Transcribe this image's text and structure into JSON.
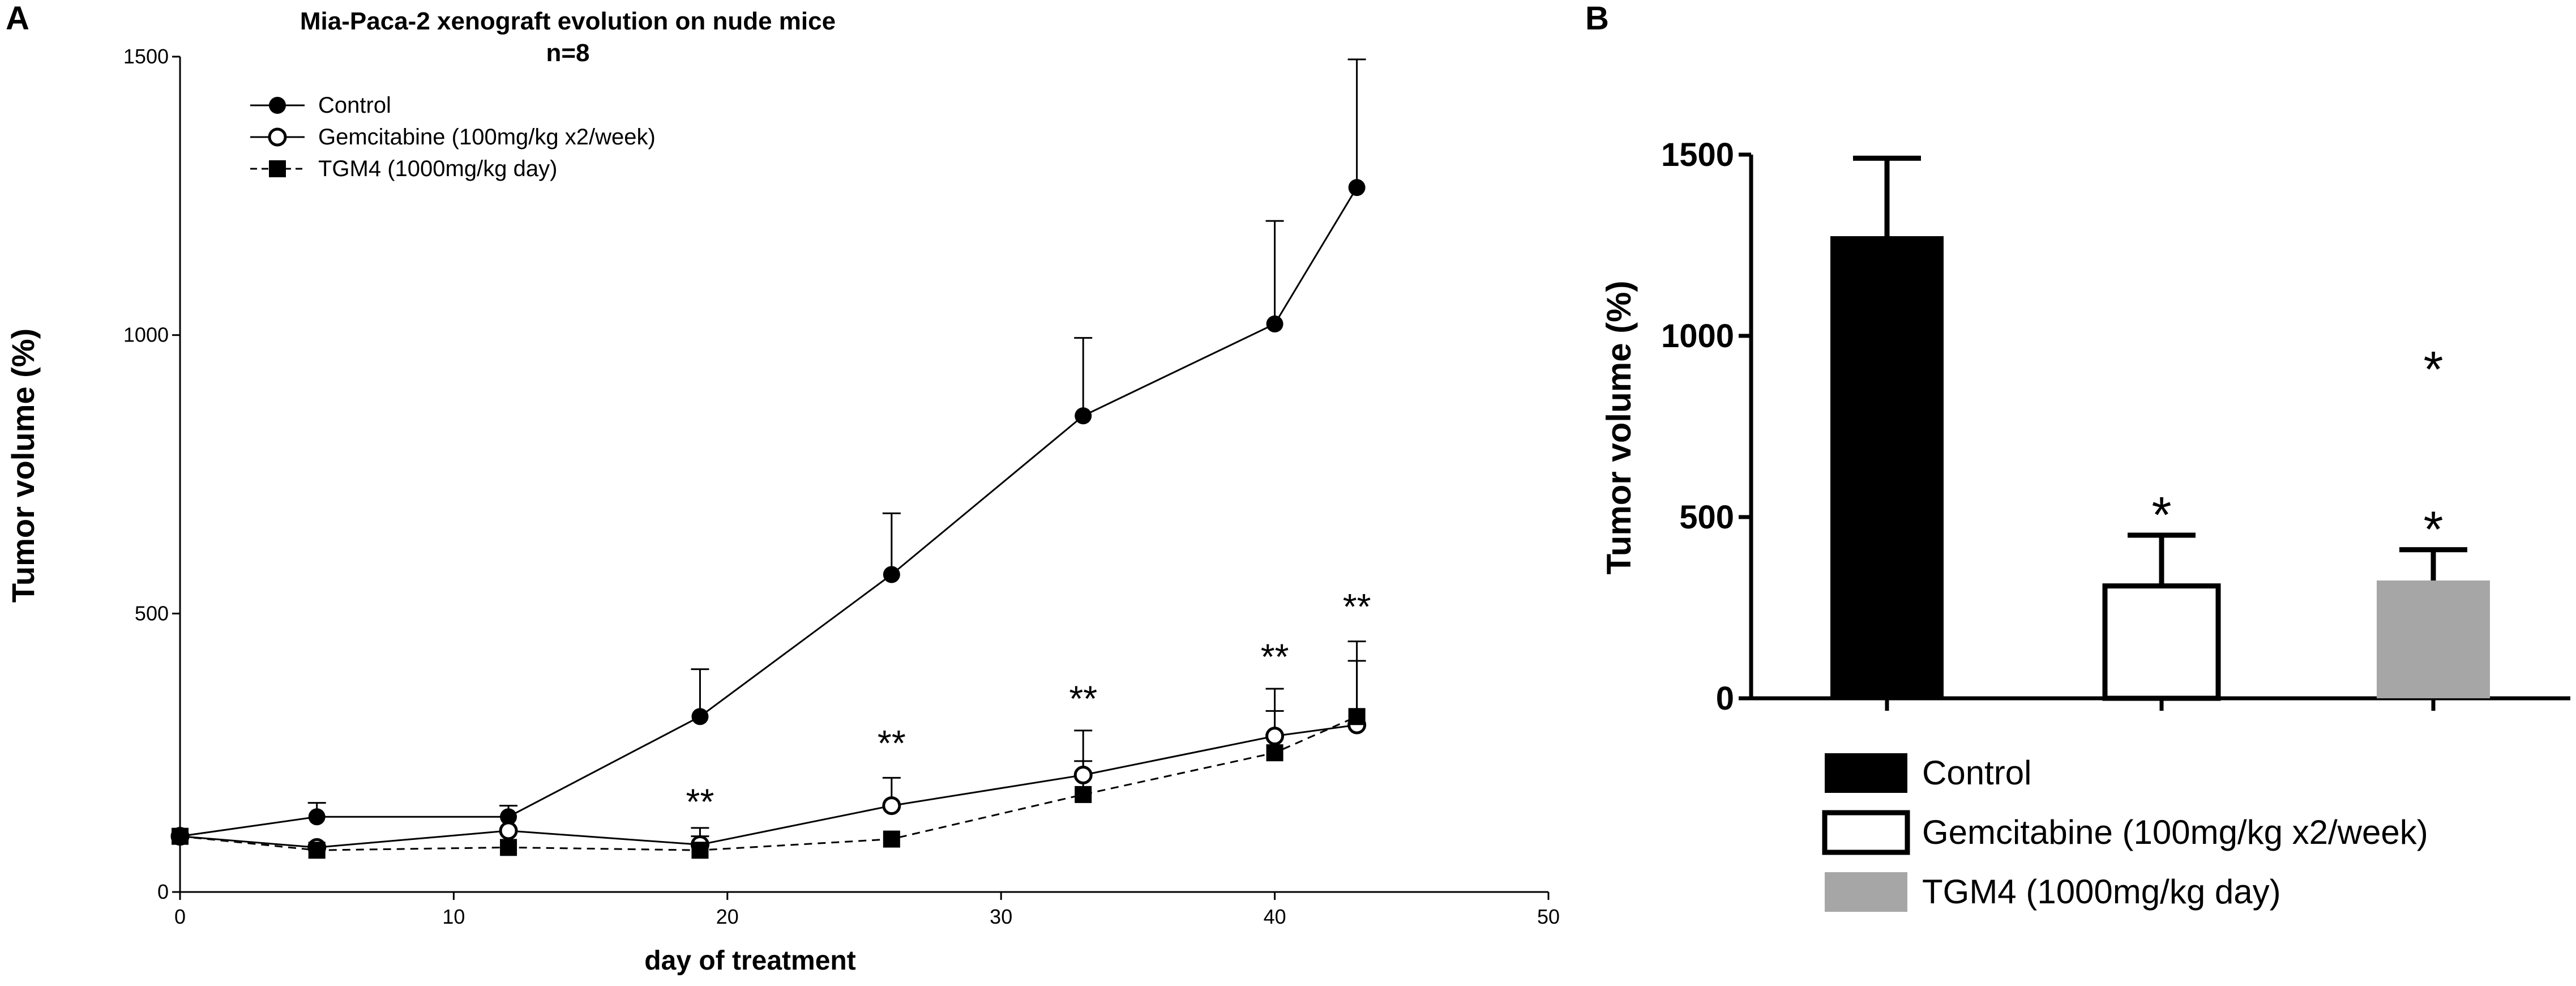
{
  "chart_data": [
    {
      "panel_label": "A",
      "type": "line",
      "title": "Mia-Paca-2 xenograft evolution on nude mice",
      "subtitle": "n=8",
      "xlabel": "day of treatment",
      "ylabel": "Tumor volume (%)",
      "xlim": [
        0,
        50
      ],
      "ylim": [
        0,
        1500
      ],
      "xticks": [
        0,
        10,
        20,
        30,
        40,
        50
      ],
      "yticks": [
        0,
        500,
        1000,
        1500
      ],
      "legend_position": "top-left",
      "series": [
        {
          "name": "Control",
          "marker": "filled-circle",
          "line": "solid",
          "x": [
            0,
            5,
            12,
            19,
            26,
            33,
            40,
            43
          ],
          "y": [
            100,
            135,
            135,
            315,
            570,
            855,
            1020,
            1265
          ],
          "err": [
            0,
            25,
            20,
            85,
            110,
            140,
            185,
            230
          ]
        },
        {
          "name": "Gemcitabine (100mg/kg x2/week)",
          "marker": "open-circle",
          "line": "solid",
          "x": [
            0,
            5,
            12,
            19,
            26,
            33,
            40,
            43
          ],
          "y": [
            100,
            80,
            110,
            85,
            155,
            210,
            280,
            300
          ],
          "err": [
            0,
            0,
            0,
            30,
            50,
            80,
            85,
            150
          ]
        },
        {
          "name": "TGM4 (1000mg/kg day)",
          "marker": "filled-square",
          "line": "dashed",
          "x": [
            0,
            5,
            12,
            19,
            26,
            33,
            40,
            43
          ],
          "y": [
            100,
            75,
            80,
            75,
            95,
            175,
            250,
            315
          ],
          "err": [
            0,
            0,
            0,
            25,
            0,
            60,
            75,
            100
          ]
        }
      ],
      "annotations": [
        {
          "x": 19,
          "y": 140,
          "text": "**"
        },
        {
          "x": 26,
          "y": 245,
          "text": "**"
        },
        {
          "x": 33,
          "y": 325,
          "text": "**"
        },
        {
          "x": 40,
          "y": 400,
          "text": "**"
        },
        {
          "x": 43,
          "y": 490,
          "text": "**"
        }
      ]
    },
    {
      "panel_label": "B",
      "type": "bar",
      "ylabel": "Tumor volume (%)",
      "ylim": [
        0,
        1500
      ],
      "yticks": [
        0,
        500,
        1000,
        1500
      ],
      "categories": [
        "Control",
        "Gemcitabine (100mg/kg x2/week)",
        "TGM4 (1000mg/kg day)"
      ],
      "values": [
        1275,
        310,
        325
      ],
      "err": [
        215,
        140,
        85
      ],
      "colors": [
        "#000000",
        "#ffffff",
        "#a6a6a6"
      ],
      "legend_position": "bottom",
      "annotations": [
        {
          "category": 1,
          "text": "*"
        },
        {
          "category": 2,
          "text": "*"
        },
        {
          "category": 2,
          "text": "*"
        }
      ]
    }
  ]
}
